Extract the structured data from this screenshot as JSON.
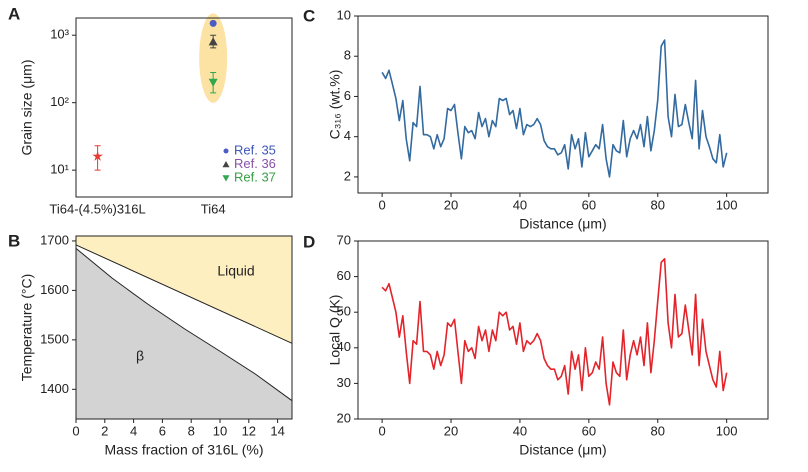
{
  "chart_data": [
    {
      "label": "A",
      "type": "scatter",
      "ylabel": "Grain size (μm)",
      "categories": [
        "Ti64-(4.5%)316L",
        "Ti64"
      ],
      "ylim": [
        4,
        1800
      ],
      "log_y": true,
      "yticks": [
        {
          "value": 10,
          "label": "10¹"
        },
        {
          "value": 100,
          "label": "10²"
        },
        {
          "value": 1000,
          "label": "10³"
        }
      ],
      "highlight_color": "#fce3a3",
      "legend": "lower right",
      "series": [
        {
          "color": "#e83a2e",
          "marker": "star",
          "values": [
            16,
            null
          ],
          "errors": [
            [
              6,
              7
            ],
            null
          ]
        },
        {
          "name": "Ref. 35",
          "color": "#4c5cc4",
          "label_color": "#3e58b8",
          "marker": "circle",
          "values": [
            null,
            1500
          ],
          "errors": [
            null,
            null
          ]
        },
        {
          "name": "Ref. 36",
          "color": "#444444",
          "label_color": "#8a52a8",
          "marker": "triangle",
          "values": [
            null,
            800
          ],
          "errors": [
            null,
            [
              150,
              200
            ]
          ]
        },
        {
          "name": "Ref. 37",
          "color": "#2fa84f",
          "label_color": "#37a046",
          "marker": "triangle-down",
          "values": [
            null,
            200
          ],
          "errors": [
            null,
            [
              60,
              80
            ]
          ]
        }
      ]
    },
    {
      "label": "B",
      "type": "area",
      "xlabel": "Mass fraction of 316L (%)",
      "ylabel": "Temperature (°C)",
      "xlim": [
        0,
        15
      ],
      "ylim": [
        1340,
        1710
      ],
      "xticks": [
        0,
        2,
        4,
        6,
        8,
        10,
        12,
        14
      ],
      "yticks": [
        1400,
        1500,
        1600,
        1700
      ],
      "annotations": [
        "Liquid",
        "β"
      ],
      "series": [
        {
          "color": "#222222",
          "fill": "#fdefc0",
          "fill_to": "top",
          "x": [
            0,
            15
          ],
          "values": [
            1692,
            1493
          ]
        },
        {
          "color": "#222222",
          "fill": "#d3d3d3",
          "fill_to": "bottom",
          "x": [
            0,
            2.5,
            5,
            7.5,
            10,
            12.5,
            15
          ],
          "values": [
            1685,
            1625,
            1572,
            1523,
            1477,
            1430,
            1377
          ]
        }
      ]
    },
    {
      "label": "C",
      "type": "line",
      "xlabel": "Distance (μm)",
      "ylabel": "C₃₁₆ (wt.%)",
      "xlim": [
        -7,
        112
      ],
      "ylim": [
        1.2,
        10
      ],
      "xticks": [
        0,
        20,
        40,
        60,
        80,
        100
      ],
      "yticks": [
        2,
        4,
        6,
        8,
        10
      ],
      "x": [
        0,
        1,
        2,
        3,
        4,
        5,
        6,
        7,
        8,
        9,
        10,
        11,
        12,
        13,
        14,
        15,
        16,
        17,
        18,
        19,
        20,
        21,
        22,
        23,
        24,
        25,
        26,
        27,
        28,
        29,
        30,
        31,
        32,
        33,
        34,
        35,
        36,
        37,
        38,
        39,
        40,
        41,
        42,
        43,
        44,
        45,
        46,
        47,
        48,
        49,
        50,
        51,
        52,
        53,
        54,
        55,
        56,
        57,
        58,
        59,
        60,
        61,
        62,
        63,
        64,
        65,
        66,
        67,
        68,
        69,
        70,
        71,
        72,
        73,
        74,
        75,
        76,
        77,
        78,
        79,
        80,
        81,
        82,
        83,
        84,
        85,
        86,
        87,
        88,
        89,
        90,
        91,
        92,
        93,
        94,
        95,
        96,
        97,
        98,
        99,
        100
      ],
      "series": [
        {
          "color": "#336aa0",
          "values": [
            7.2,
            6.9,
            7.3,
            6.6,
            5.9,
            4.8,
            5.8,
            3.9,
            2.8,
            4.7,
            4.5,
            6.5,
            4.1,
            4.1,
            4.0,
            3.4,
            4.1,
            3.5,
            3.9,
            5.4,
            5.3,
            5.6,
            4.2,
            2.9,
            4.5,
            4.2,
            4.3,
            3.9,
            5.2,
            4.5,
            4.9,
            4.0,
            4.8,
            4.5,
            5.9,
            5.8,
            5.9,
            5.1,
            5.3,
            4.4,
            5.4,
            4.1,
            4.6,
            4.5,
            4.6,
            4.9,
            4.6,
            3.8,
            3.5,
            3.4,
            3.4,
            3.1,
            3.2,
            3.6,
            2.4,
            4.1,
            3.4,
            3.9,
            2.5,
            4.2,
            3.0,
            3.3,
            3.6,
            3.4,
            4.6,
            2.9,
            2.0,
            3.6,
            3.3,
            3.2,
            4.8,
            3.0,
            3.9,
            4.3,
            3.9,
            4.6,
            3.5,
            5.0,
            3.3,
            4.3,
            5.8,
            8.5,
            8.8,
            5.0,
            4.0,
            6.1,
            4.5,
            4.6,
            5.6,
            4.7,
            3.9,
            6.8,
            3.4,
            5.3,
            4.0,
            3.5,
            2.9,
            2.7,
            4.1,
            2.5,
            3.2
          ]
        }
      ]
    },
    {
      "label": "D",
      "type": "line",
      "xlabel": "Distance (μm)",
      "ylabel": "Local Q (K)",
      "xlim": [
        -7,
        112
      ],
      "ylim": [
        20,
        70
      ],
      "xticks": [
        0,
        20,
        40,
        60,
        80,
        100
      ],
      "yticks": [
        20,
        30,
        40,
        50,
        60,
        70
      ],
      "x": [
        0,
        1,
        2,
        3,
        4,
        5,
        6,
        7,
        8,
        9,
        10,
        11,
        12,
        13,
        14,
        15,
        16,
        17,
        18,
        19,
        20,
        21,
        22,
        23,
        24,
        25,
        26,
        27,
        28,
        29,
        30,
        31,
        32,
        33,
        34,
        35,
        36,
        37,
        38,
        39,
        40,
        41,
        42,
        43,
        44,
        45,
        46,
        47,
        48,
        49,
        50,
        51,
        52,
        53,
        54,
        55,
        56,
        57,
        58,
        59,
        60,
        61,
        62,
        63,
        64,
        65,
        66,
        67,
        68,
        69,
        70,
        71,
        72,
        73,
        74,
        75,
        76,
        77,
        78,
        79,
        80,
        81,
        82,
        83,
        84,
        85,
        86,
        87,
        88,
        89,
        90,
        91,
        92,
        93,
        94,
        95,
        96,
        97,
        98,
        99,
        100
      ],
      "series": [
        {
          "color": "#e3242b",
          "values": [
            57,
            56,
            58,
            54,
            50,
            43,
            49,
            39,
            30,
            42,
            41,
            53,
            39,
            39,
            38,
            34,
            39,
            35,
            38,
            47,
            46,
            48,
            39,
            30,
            42,
            39,
            40,
            37,
            46,
            42,
            45,
            39,
            45,
            42,
            50,
            49,
            50,
            45,
            46,
            41,
            47,
            39,
            42,
            41,
            42,
            44,
            42,
            37,
            35,
            34,
            34,
            31,
            32,
            35,
            27,
            39,
            34,
            38,
            28,
            40,
            32,
            33,
            36,
            34,
            43,
            30,
            24,
            36,
            33,
            32,
            45,
            31,
            38,
            42,
            38,
            43,
            35,
            47,
            33,
            42,
            53,
            64,
            65,
            47,
            40,
            55,
            43,
            44,
            52,
            45,
            38,
            55,
            35,
            48,
            39,
            35,
            31,
            29,
            39,
            28,
            33
          ]
        }
      ]
    }
  ]
}
